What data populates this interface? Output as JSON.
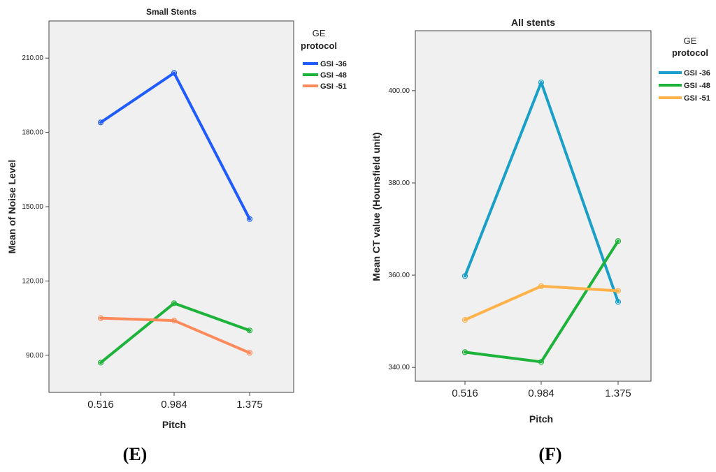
{
  "figure_labels": [
    "(E)",
    "(F)"
  ],
  "chart_data": [
    {
      "type": "line",
      "title": "Small Stents",
      "xlabel": "Pitch",
      "ylabel": "Mean of Noise Level",
      "categories": [
        "0.516",
        "0.984",
        "1.375"
      ],
      "ylim": [
        75,
        225
      ],
      "yticks": [
        90,
        120,
        150,
        180,
        210
      ],
      "ytick_labels": [
        "90.00",
        "120.00",
        "150.00",
        "180.00",
        "210.00"
      ],
      "legend": {
        "title_line1": "GE",
        "title_line2": "protocol",
        "placement": "right"
      },
      "series": [
        {
          "name": "GSI -36",
          "color": "#1f5bff",
          "values": [
            184,
            204,
            145
          ]
        },
        {
          "name": "GSI -48",
          "color": "#1db33a",
          "values": [
            87,
            111,
            100
          ]
        },
        {
          "name": "GSI -51",
          "color": "#ff8a5c",
          "values": [
            105,
            104,
            91
          ]
        }
      ],
      "panel_label": "(E)"
    },
    {
      "type": "line",
      "title": "All stents",
      "xlabel": "Pitch",
      "ylabel": "Mean CT value (Hounsfield unit)",
      "categories": [
        "0.516",
        "0.984",
        "1.375"
      ],
      "ylim": [
        337,
        413
      ],
      "yticks": [
        340,
        360,
        380,
        400
      ],
      "ytick_labels": [
        "340.00",
        "360.00",
        "380.00",
        "400.00"
      ],
      "legend": {
        "title_line1": "GE",
        "title_line2": "protocol",
        "placement": "right"
      },
      "series": [
        {
          "name": "GSI -36",
          "color": "#1aa0c8",
          "values": [
            359.8,
            401.8,
            354.2
          ]
        },
        {
          "name": "GSI -48",
          "color": "#1db33a",
          "values": [
            343.3,
            341.2,
            367.4
          ]
        },
        {
          "name": "GSI -51",
          "color": "#ffb24a",
          "values": [
            350.3,
            357.6,
            356.6
          ]
        }
      ],
      "panel_label": "(F)"
    }
  ]
}
